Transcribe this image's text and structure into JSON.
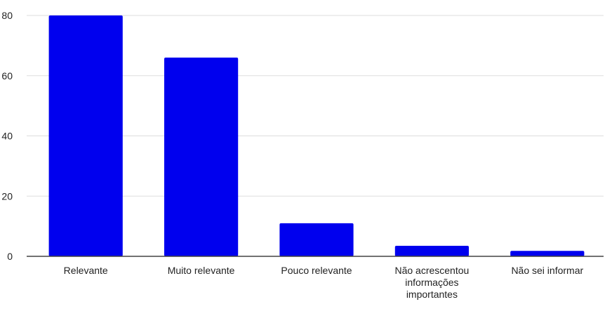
{
  "chart_data": {
    "type": "bar",
    "categories": [
      [
        "Relevante"
      ],
      [
        "Muito relevante"
      ],
      [
        "Pouco relevante"
      ],
      [
        "Não acrescentou",
        "informações",
        "importantes"
      ],
      [
        "Não sei informar"
      ]
    ],
    "values": [
      80,
      66,
      11,
      3.5,
      1.8
    ],
    "title": "",
    "xlabel": "",
    "ylabel": "",
    "ylim": [
      0,
      80
    ],
    "yticks": [
      0,
      20,
      40,
      60,
      80
    ],
    "grid": true,
    "legend": "none",
    "colors": {
      "bar": "#0000ee",
      "grid": "#dddddd",
      "baseline": "#444444"
    }
  }
}
